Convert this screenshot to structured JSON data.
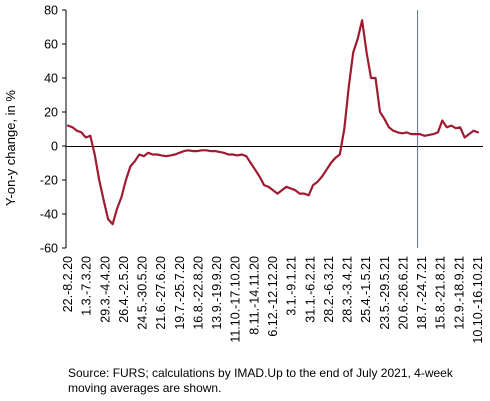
{
  "chart_data": {
    "type": "line",
    "ylabel": "Y-on-y change, in %",
    "ylim": [
      -60,
      80
    ],
    "yticks": [
      -60,
      -40,
      -20,
      0,
      20,
      40,
      60,
      80
    ],
    "xtick_labels": [
      "22.-8.2.20",
      "1.3.-7.3.20",
      "29.3.-4.4.20",
      "26.4.-2.5.20",
      "24.5.-30.5.20",
      "21.6.-27.6.20",
      "19.7.-25.7.20",
      "16.8.-22.8.20",
      "13.9.-19.9.20",
      "11.10.-17.10.20",
      "8.11.-14.11.20",
      "6.12.-12.12.20",
      "3.1.-9.1.21",
      "31.1.-6.2.21",
      "28.2.-6.3.21",
      "28.3.-3.4.21",
      "25.4.-1.5.21",
      "23.5.-29.5.21",
      "20.6.-26.6.21",
      "18.7.-24.7.21",
      "15.8.-21.8.21",
      "12.9.-18.9.21",
      "10.10.-16.10.21"
    ],
    "grid": false,
    "vline_after_week": 78,
    "series": [
      {
        "color": "#9e1b32",
        "values": [
          12,
          11,
          9,
          8,
          5,
          6,
          -5,
          -20,
          -32,
          -43,
          -46,
          -37,
          -30,
          -20,
          -12,
          -9,
          -5,
          -6,
          -4,
          -5,
          -5,
          -5.5,
          -6,
          -5.5,
          -5,
          -4,
          -3,
          -2.5,
          -3,
          -3,
          -2.5,
          -2.5,
          -3,
          -3,
          -3.5,
          -4,
          -5,
          -5,
          -5.5,
          -5,
          -6,
          -10,
          -14,
          -18,
          -23,
          -24,
          -26,
          -28,
          -26,
          -24,
          -25,
          -26,
          -28,
          -28,
          -29,
          -23,
          -21,
          -18,
          -14,
          -10,
          -7,
          -5,
          10,
          35,
          55,
          63,
          74,
          55,
          40,
          40,
          20,
          16,
          11,
          9,
          8,
          7.5,
          8,
          7,
          7,
          7,
          6,
          6.5,
          7,
          8,
          15,
          11,
          12,
          10.5,
          11,
          5,
          7,
          9,
          8
        ]
      }
    ]
  },
  "source_note": "Source: FURS; calculations by IMAD.Up to the end of July 2021, 4-week moving averages are shown."
}
